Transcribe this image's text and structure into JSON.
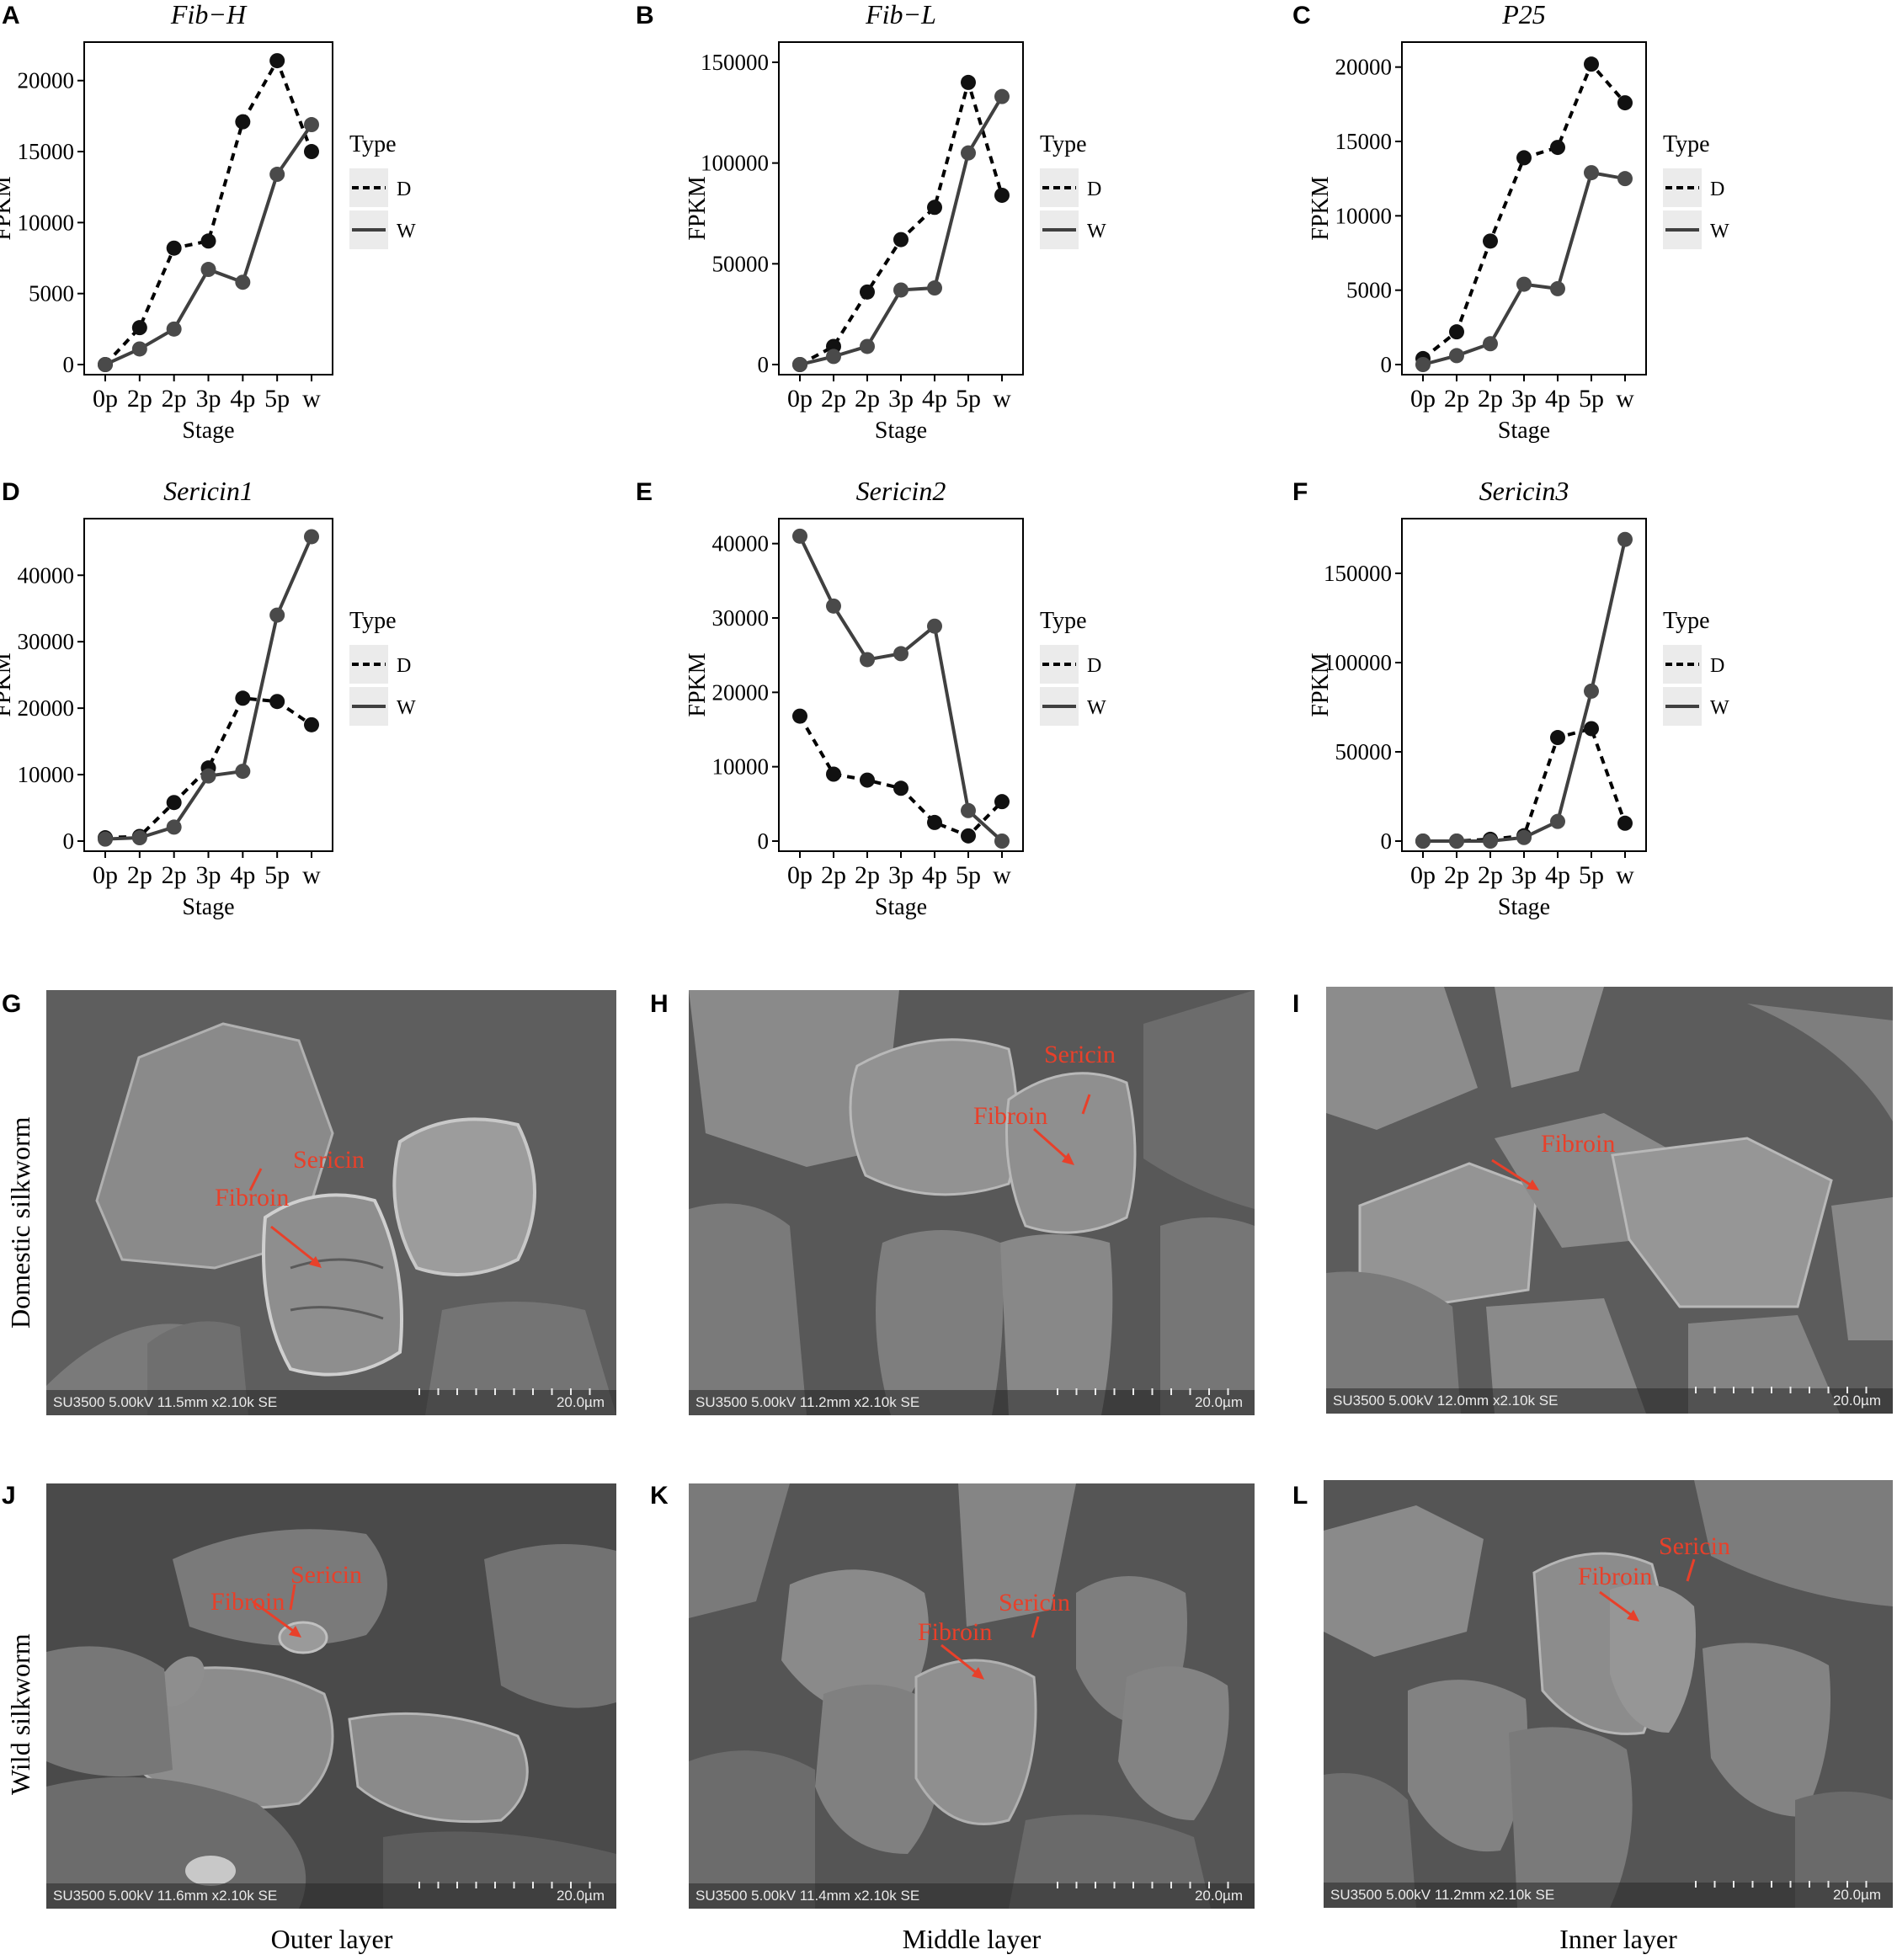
{
  "panels": {
    "A": "A",
    "B": "B",
    "C": "C",
    "D": "D",
    "E": "E",
    "F": "F",
    "G": "G",
    "H": "H",
    "I": "I",
    "J": "J",
    "K": "K",
    "L": "L"
  },
  "chart_data": [
    {
      "type": "line",
      "title": "Fib−H",
      "xlabel": "Stage",
      "ylabel": "FPKM",
      "categories": [
        "0p",
        "2p",
        "2p",
        "3p",
        "4p",
        "5p",
        "w"
      ],
      "ylim": [
        0,
        22000
      ],
      "yticks": [
        0,
        5000,
        10000,
        15000,
        20000
      ],
      "legend": {
        "title": "Type",
        "entries": [
          "D",
          "W"
        ],
        "position": "right"
      },
      "series": [
        {
          "name": "D",
          "values": [
            0,
            2600,
            8200,
            8700,
            17100,
            21400,
            15000
          ]
        },
        {
          "name": "W",
          "values": [
            0,
            1100,
            2500,
            6700,
            5800,
            13400,
            16900
          ]
        }
      ]
    },
    {
      "type": "line",
      "title": "Fib−L",
      "xlabel": "Stage",
      "ylabel": "FPKM",
      "categories": [
        "0p",
        "2p",
        "2p",
        "3p",
        "4p",
        "5p",
        "w"
      ],
      "ylim": [
        0,
        155000
      ],
      "yticks": [
        0,
        50000,
        100000,
        150000
      ],
      "legend": {
        "title": "Type",
        "entries": [
          "D",
          "W"
        ],
        "position": "right"
      },
      "series": [
        {
          "name": "D",
          "values": [
            0,
            9000,
            36000,
            62000,
            78000,
            140000,
            84000
          ]
        },
        {
          "name": "W",
          "values": [
            0,
            4000,
            9000,
            37000,
            38000,
            105000,
            133000
          ]
        }
      ]
    },
    {
      "type": "line",
      "title": "P25",
      "xlabel": "Stage",
      "ylabel": "FPKM",
      "categories": [
        "0p",
        "2p",
        "2p",
        "3p",
        "4p",
        "5p",
        "w"
      ],
      "ylim": [
        0,
        21000
      ],
      "yticks": [
        0,
        5000,
        10000,
        15000,
        20000
      ],
      "legend": {
        "title": "Type",
        "entries": [
          "D",
          "W"
        ],
        "position": "right"
      },
      "series": [
        {
          "name": "D",
          "values": [
            400,
            2200,
            8300,
            13900,
            14600,
            20200,
            17600
          ]
        },
        {
          "name": "W",
          "values": [
            0,
            600,
            1400,
            5400,
            5100,
            12900,
            12500
          ]
        }
      ]
    },
    {
      "type": "line",
      "title": "Sericin1",
      "xlabel": "Stage",
      "ylabel": "FPKM",
      "categories": [
        "0p",
        "2p",
        "2p",
        "3p",
        "4p",
        "5p",
        "w"
      ],
      "ylim": [
        0,
        47000
      ],
      "yticks": [
        0,
        10000,
        20000,
        30000,
        40000
      ],
      "legend": {
        "title": "Type",
        "entries": [
          "D",
          "W"
        ],
        "position": "right"
      },
      "series": [
        {
          "name": "D",
          "values": [
            500,
            700,
            5800,
            11000,
            21500,
            21000,
            17500
          ]
        },
        {
          "name": "W",
          "values": [
            300,
            500,
            2100,
            9800,
            10500,
            34000,
            45800
          ]
        }
      ]
    },
    {
      "type": "line",
      "title": "Sericin2",
      "xlabel": "Stage",
      "ylabel": "FPKM",
      "categories": [
        "0p",
        "2p",
        "2p",
        "3p",
        "4p",
        "5p",
        "w"
      ],
      "ylim": [
        0,
        42000
      ],
      "yticks": [
        0,
        10000,
        20000,
        30000,
        40000
      ],
      "legend": {
        "title": "Type",
        "entries": [
          "D",
          "W"
        ],
        "position": "right"
      },
      "series": [
        {
          "name": "D",
          "values": [
            16800,
            9000,
            8200,
            7100,
            2500,
            700,
            5300
          ]
        },
        {
          "name": "W",
          "values": [
            41000,
            31600,
            24400,
            25200,
            28900,
            4100,
            0
          ]
        }
      ]
    },
    {
      "type": "line",
      "title": "Sericin3",
      "xlabel": "Stage",
      "ylabel": "FPKM",
      "categories": [
        "0p",
        "2p",
        "2p",
        "3p",
        "4p",
        "5p",
        "w"
      ],
      "ylim": [
        0,
        175000
      ],
      "yticks": [
        0,
        50000,
        100000,
        150000
      ],
      "legend": {
        "title": "Type",
        "entries": [
          "D",
          "W"
        ],
        "position": "right"
      },
      "series": [
        {
          "name": "D",
          "values": [
            0,
            0,
            1000,
            3000,
            58000,
            63000,
            10000
          ]
        },
        {
          "name": "W",
          "values": [
            0,
            0,
            0,
            2000,
            11000,
            84000,
            169000
          ]
        }
      ]
    }
  ],
  "sem": {
    "G": {
      "info": "SU3500 5.00kV 11.5mm x2.10k SE",
      "scale": "20.0µm"
    },
    "H": {
      "info": "SU3500 5.00kV 11.2mm x2.10k SE",
      "scale": "20.0µm"
    },
    "I": {
      "info": "SU3500 5.00kV 12.0mm x2.10k SE",
      "scale": "20.0µm"
    },
    "J": {
      "info": "SU3500 5.00kV 11.6mm x2.10k SE",
      "scale": "20.0µm"
    },
    "K": {
      "info": "SU3500 5.00kV 11.4mm x2.10k SE",
      "scale": "20.0µm"
    },
    "L": {
      "info": "SU3500 5.00kV 11.2mm x2.10k SE",
      "scale": "20.0µm"
    }
  },
  "annotations": {
    "sericin": "Sericin",
    "fibroin": "Fibroin"
  },
  "row_labels": {
    "domestic": "Domestic silkworm",
    "wild": "Wild silkworm"
  },
  "col_labels": {
    "outer": "Outer layer",
    "middle": "Middle layer",
    "inner": "Inner layer"
  },
  "colors": {
    "line": "#404040",
    "annotation": "#e8402a"
  }
}
